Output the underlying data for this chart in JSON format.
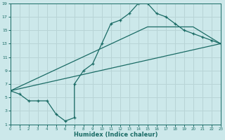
{
  "bg_color": "#cce8ea",
  "grid_color": "#b8d4d6",
  "line_color": "#1a6b65",
  "line1_x": [
    0,
    1,
    2,
    3,
    4,
    5,
    6,
    7,
    7,
    8,
    9,
    10,
    11,
    12,
    13,
    14,
    15,
    16,
    17,
    18,
    19,
    20,
    21,
    22,
    23
  ],
  "line1_y": [
    6.0,
    5.5,
    4.5,
    4.5,
    4.5,
    2.5,
    1.5,
    2.0,
    7.0,
    9.0,
    10.0,
    13.0,
    16.0,
    16.5,
    17.5,
    19.0,
    19.0,
    17.5,
    17.0,
    16.0,
    15.0,
    14.5,
    14.0,
    13.5,
    13.0
  ],
  "line2_x": [
    0,
    23
  ],
  "line2_y": [
    6.0,
    13.0
  ],
  "line3_x": [
    0,
    15,
    20,
    23
  ],
  "line3_y": [
    6.0,
    15.5,
    15.5,
    13.0
  ],
  "xlabel": "Humidex (Indice chaleur)",
  "xlim": [
    0,
    23
  ],
  "ylim": [
    1,
    19
  ],
  "yticks": [
    1,
    3,
    5,
    7,
    9,
    11,
    13,
    15,
    17,
    19
  ],
  "xticks": [
    0,
    1,
    2,
    3,
    4,
    5,
    6,
    7,
    8,
    9,
    10,
    11,
    12,
    13,
    14,
    15,
    16,
    17,
    18,
    19,
    20,
    21,
    22,
    23
  ]
}
